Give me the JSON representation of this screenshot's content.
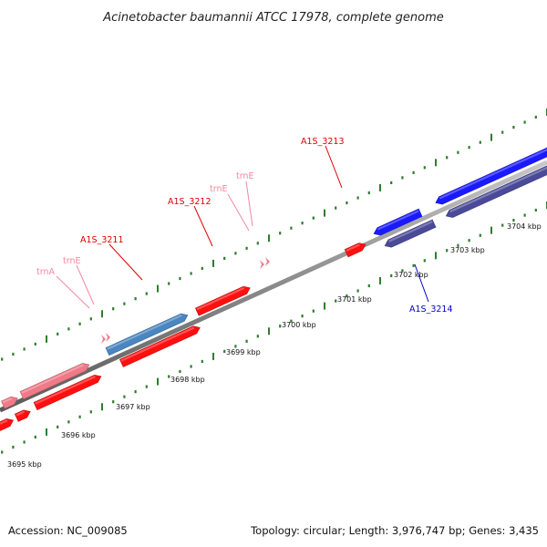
{
  "title": "Acinetobacter baumannii ATCC 17978, complete genome",
  "footer": {
    "accession": "Accession: NC_009085",
    "topology": "Topology: circular; Length: 3,976,747 bp; Genes: 3,435"
  },
  "colors": {
    "backbone": "#8c8c8c",
    "tick": "#2e7d2e",
    "cds_forward": "#ff1010",
    "cds_forward_label": "#dd0000",
    "cds_reverse": "#1a1aff",
    "cds_reverse_dark": "#4a4a99",
    "cds_reverse_label": "#0000cc",
    "rna": "#f07a88",
    "rna_label": "#f08aa0",
    "steel": "#4a86c0"
  },
  "kbp_labels": [
    "3695 kbp",
    "3696 kbp",
    "3697 kbp",
    "3698 kbp",
    "3699 kbp",
    "3700 kbp",
    "3701 kbp",
    "3702 kbp",
    "3703 kbp",
    "3704 kbp"
  ],
  "feature_labels": [
    {
      "text": "trnA",
      "color": "rna"
    },
    {
      "text": "trnE",
      "color": "rna"
    },
    {
      "text": "A1S_3211",
      "color": "cds_forward"
    },
    {
      "text": "A1S_3212",
      "color": "cds_forward"
    },
    {
      "text": "trnE",
      "color": "rna"
    },
    {
      "text": "trnE",
      "color": "rna"
    },
    {
      "text": "A1S_3213",
      "color": "cds_forward"
    },
    {
      "text": "A1S_3214",
      "color": "cds_reverse"
    }
  ]
}
